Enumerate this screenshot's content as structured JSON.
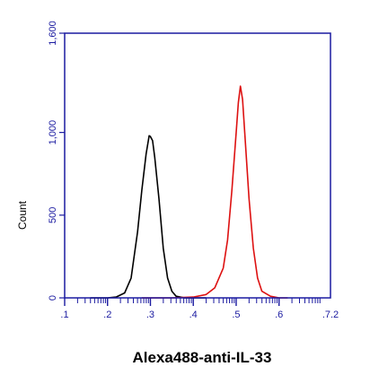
{
  "chart_data": {
    "type": "line",
    "xlabel": "Alexa488-anti-IL-33",
    "ylabel": "Count",
    "scale": "log10 fluorescence intensity",
    "xlim": [
      1,
      7.2
    ],
    "ylim": [
      0,
      1600
    ],
    "y_ticks": [
      0,
      500,
      1000,
      1600
    ],
    "y_tick_labels": [
      "0",
      "500",
      "1,000",
      "1,600"
    ],
    "x_ticks": [
      1,
      2,
      3,
      4,
      5,
      6,
      7.2
    ],
    "x_tick_labels": [
      ".1",
      ".2",
      ".3",
      ".4",
      ".5",
      ".6",
      ".7.2"
    ],
    "grid": false,
    "series": [
      {
        "color": "#000000",
        "x": [
          1.6,
          2.0,
          2.2,
          2.4,
          2.55,
          2.7,
          2.8,
          2.9,
          2.97,
          3.0,
          3.05,
          3.1,
          3.2,
          3.3,
          3.4,
          3.5,
          3.6,
          3.8,
          4.0,
          4.3
        ],
        "y": [
          0,
          0,
          5,
          30,
          120,
          400,
          650,
          870,
          980,
          975,
          950,
          850,
          600,
          300,
          120,
          40,
          10,
          0,
          0,
          0
        ]
      },
      {
        "color": "#dd1111",
        "x": [
          2.8,
          3.5,
          4.0,
          4.3,
          4.5,
          4.7,
          4.8,
          4.9,
          5.0,
          5.05,
          5.1,
          5.15,
          5.2,
          5.3,
          5.4,
          5.5,
          5.6,
          5.8,
          6.0,
          6.2
        ],
        "y": [
          0,
          0,
          5,
          20,
          60,
          180,
          350,
          650,
          1000,
          1180,
          1280,
          1200,
          1000,
          600,
          300,
          120,
          40,
          10,
          0,
          0
        ]
      }
    ]
  }
}
